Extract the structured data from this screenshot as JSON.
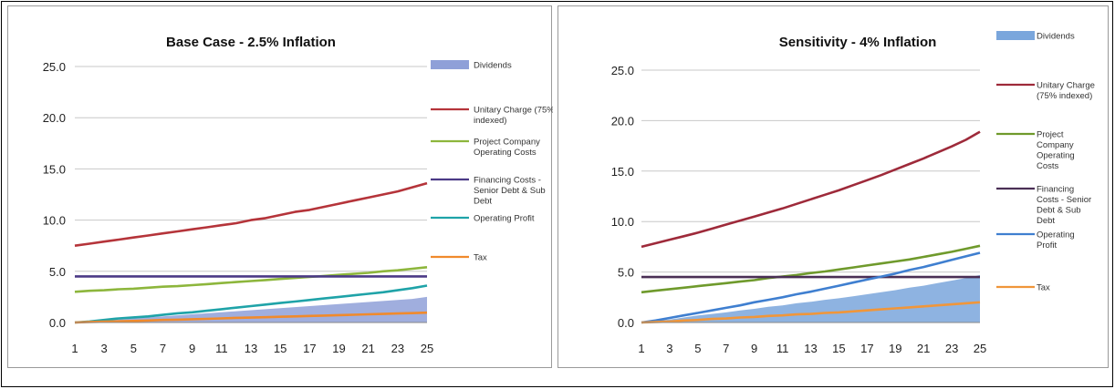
{
  "chart_data": [
    {
      "type": "line",
      "title": "Base Case - 2.5% Inflation",
      "x": [
        1,
        2,
        3,
        4,
        5,
        6,
        7,
        8,
        9,
        10,
        11,
        12,
        13,
        14,
        15,
        16,
        17,
        18,
        19,
        20,
        21,
        22,
        23,
        24,
        25
      ],
      "x_tick_labels": [
        "1",
        "3",
        "5",
        "7",
        "9",
        "11",
        "13",
        "15",
        "17",
        "19",
        "21",
        "23",
        "25"
      ],
      "y_tick_labels": [
        "0.0",
        "5.0",
        "10.0",
        "15.0",
        "20.0",
        "25.0"
      ],
      "ylim": [
        0,
        25
      ],
      "grid": "horizontal",
      "legend_position": "right",
      "series": [
        {
          "name": "Dividends",
          "style": "area",
          "color": "#8fa0d8",
          "values": [
            0,
            0.1,
            0.2,
            0.3,
            0.4,
            0.5,
            0.6,
            0.7,
            0.8,
            0.9,
            1.0,
            1.1,
            1.2,
            1.3,
            1.4,
            1.5,
            1.6,
            1.7,
            1.8,
            1.9,
            2.0,
            2.1,
            2.2,
            2.3,
            2.5
          ]
        },
        {
          "name": "Unitary Charge (75% indexed)",
          "style": "line",
          "color": "#b5343a",
          "values": [
            7.5,
            7.7,
            7.9,
            8.1,
            8.3,
            8.5,
            8.7,
            8.9,
            9.1,
            9.3,
            9.5,
            9.7,
            10.0,
            10.2,
            10.5,
            10.8,
            11.0,
            11.3,
            11.6,
            11.9,
            12.2,
            12.5,
            12.8,
            13.2,
            13.6
          ]
        },
        {
          "name": "Project Company Operating Costs",
          "style": "line",
          "color": "#8db63c",
          "values": [
            3.0,
            3.1,
            3.15,
            3.25,
            3.3,
            3.4,
            3.5,
            3.55,
            3.65,
            3.75,
            3.85,
            3.95,
            4.05,
            4.15,
            4.25,
            4.35,
            4.45,
            4.55,
            4.65,
            4.75,
            4.85,
            5.0,
            5.1,
            5.25,
            5.4
          ]
        },
        {
          "name": "Financing Costs - Senior Debt & Sub Debt",
          "style": "line",
          "color": "#4b3a86",
          "values": [
            4.5,
            4.5,
            4.5,
            4.5,
            4.5,
            4.5,
            4.5,
            4.5,
            4.5,
            4.5,
            4.5,
            4.5,
            4.5,
            4.5,
            4.5,
            4.5,
            4.5,
            4.5,
            4.5,
            4.5,
            4.5,
            4.5,
            4.5,
            4.5,
            4.5
          ]
        },
        {
          "name": "Operating Profit",
          "style": "line",
          "color": "#1fa3a8",
          "values": [
            0.0,
            0.1,
            0.25,
            0.4,
            0.5,
            0.6,
            0.75,
            0.9,
            1.0,
            1.15,
            1.3,
            1.45,
            1.6,
            1.75,
            1.9,
            2.05,
            2.2,
            2.35,
            2.5,
            2.65,
            2.8,
            2.95,
            3.15,
            3.35,
            3.6
          ]
        },
        {
          "name": "Tax",
          "style": "line",
          "color": "#f08a2c",
          "values": [
            0.0,
            0.05,
            0.08,
            0.12,
            0.15,
            0.2,
            0.25,
            0.28,
            0.32,
            0.36,
            0.4,
            0.45,
            0.48,
            0.52,
            0.56,
            0.6,
            0.64,
            0.68,
            0.72,
            0.76,
            0.8,
            0.84,
            0.88,
            0.92,
            0.96
          ]
        }
      ]
    },
    {
      "type": "line",
      "title": "Sensitivity - 4% Inflation",
      "x": [
        1,
        2,
        3,
        4,
        5,
        6,
        7,
        8,
        9,
        10,
        11,
        12,
        13,
        14,
        15,
        16,
        17,
        18,
        19,
        20,
        21,
        22,
        23,
        24,
        25
      ],
      "x_tick_labels": [
        "1",
        "3",
        "5",
        "7",
        "9",
        "11",
        "13",
        "15",
        "17",
        "19",
        "21",
        "23",
        "25"
      ],
      "y_tick_labels": [
        "0.0",
        "5.0",
        "10.0",
        "15.0",
        "20.0",
        "25.0"
      ],
      "ylim": [
        0,
        25
      ],
      "grid": "horizontal",
      "legend_position": "right",
      "series": [
        {
          "name": "Dividends",
          "style": "area",
          "color": "#7aa6dc",
          "values": [
            0,
            0.15,
            0.3,
            0.5,
            0.7,
            0.85,
            1.0,
            1.2,
            1.35,
            1.55,
            1.7,
            1.9,
            2.05,
            2.25,
            2.4,
            2.6,
            2.8,
            3.0,
            3.2,
            3.45,
            3.65,
            3.9,
            4.15,
            4.4,
            4.7
          ]
        },
        {
          "name": "Unitary Charge (75% indexed)",
          "style": "line",
          "color": "#9e2a3a",
          "values": [
            7.5,
            7.85,
            8.2,
            8.55,
            8.9,
            9.3,
            9.7,
            10.1,
            10.5,
            10.9,
            11.3,
            11.75,
            12.2,
            12.65,
            13.1,
            13.6,
            14.1,
            14.6,
            15.15,
            15.7,
            16.25,
            16.85,
            17.45,
            18.1,
            18.9
          ]
        },
        {
          "name": "Project Company Operating Costs",
          "style": "line",
          "color": "#6f9a2c",
          "values": [
            3.0,
            3.15,
            3.3,
            3.45,
            3.6,
            3.75,
            3.9,
            4.05,
            4.2,
            4.4,
            4.55,
            4.7,
            4.9,
            5.05,
            5.25,
            5.45,
            5.65,
            5.85,
            6.05,
            6.25,
            6.5,
            6.75,
            7.0,
            7.3,
            7.6
          ]
        },
        {
          "name": "Financing Costs - Senior Debt & Sub Debt",
          "style": "line",
          "color": "#4a2f55",
          "values": [
            4.5,
            4.5,
            4.5,
            4.5,
            4.5,
            4.5,
            4.5,
            4.5,
            4.5,
            4.5,
            4.5,
            4.5,
            4.5,
            4.5,
            4.5,
            4.5,
            4.5,
            4.5,
            4.5,
            4.5,
            4.5,
            4.5,
            4.5,
            4.5,
            4.5
          ]
        },
        {
          "name": "Operating Profit",
          "style": "line",
          "color": "#3f7fd0",
          "values": [
            0.0,
            0.2,
            0.45,
            0.7,
            0.95,
            1.2,
            1.45,
            1.7,
            2.0,
            2.25,
            2.5,
            2.8,
            3.05,
            3.35,
            3.65,
            3.95,
            4.25,
            4.55,
            4.85,
            5.2,
            5.5,
            5.85,
            6.2,
            6.55,
            6.9
          ]
        },
        {
          "name": "Tax",
          "style": "line",
          "color": "#f0963a",
          "values": [
            0.0,
            0.05,
            0.1,
            0.2,
            0.25,
            0.35,
            0.4,
            0.5,
            0.55,
            0.65,
            0.7,
            0.8,
            0.85,
            0.95,
            1.0,
            1.1,
            1.2,
            1.3,
            1.4,
            1.5,
            1.6,
            1.7,
            1.8,
            1.9,
            2.0
          ]
        }
      ]
    }
  ],
  "legends": [
    {
      "entries": [
        {
          "lines": [
            "Dividends"
          ],
          "color": "#8fa0d8",
          "swatch": "area"
        },
        {
          "lines": [
            "Unitary Charge (75%",
            "indexed)"
          ],
          "color": "#b5343a",
          "swatch": "line"
        },
        {
          "lines": [
            "Project Company",
            "Operating Costs"
          ],
          "color": "#8db63c",
          "swatch": "line"
        },
        {
          "lines": [
            "Financing Costs -",
            "Senior Debt & Sub",
            "Debt"
          ],
          "color": "#4b3a86",
          "swatch": "line"
        },
        {
          "lines": [
            "Operating Profit"
          ],
          "color": "#1fa3a8",
          "swatch": "line"
        },
        {
          "lines": [
            "Tax"
          ],
          "color": "#f08a2c",
          "swatch": "line"
        }
      ]
    },
    {
      "entries": [
        {
          "lines": [
            "Dividends"
          ],
          "color": "#7aa6dc",
          "swatch": "area"
        },
        {
          "lines": [
            "Unitary Charge",
            "(75% indexed)"
          ],
          "color": "#9e2a3a",
          "swatch": "line"
        },
        {
          "lines": [
            "Project",
            "Company",
            "Operating",
            "Costs"
          ],
          "color": "#6f9a2c",
          "swatch": "line"
        },
        {
          "lines": [
            "Financing",
            "Costs - Senior",
            "Debt & Sub",
            "Debt"
          ],
          "color": "#4a2f55",
          "swatch": "line"
        },
        {
          "lines": [
            "Operating",
            "Profit"
          ],
          "color": "#3f7fd0",
          "swatch": "line"
        },
        {
          "lines": [
            "Tax"
          ],
          "color": "#f0963a",
          "swatch": "line"
        }
      ]
    }
  ]
}
